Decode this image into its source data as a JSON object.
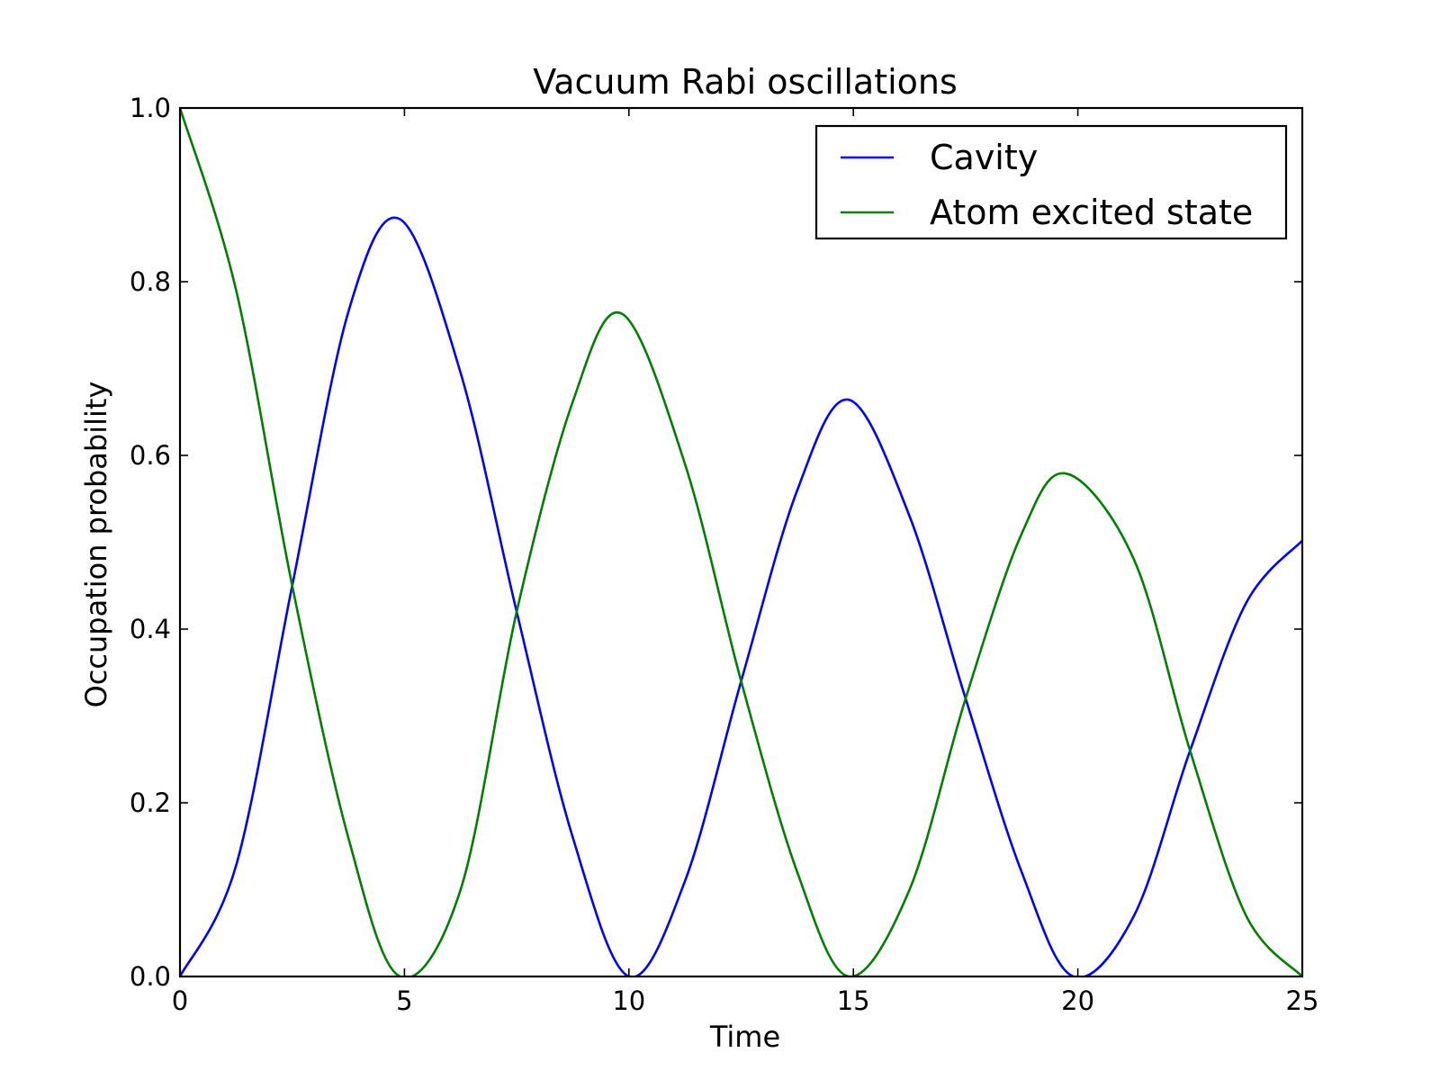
{
  "chart_data": {
    "type": "line",
    "title": "Vacuum Rabi oscillations",
    "xlabel": "Time",
    "ylabel": "Occupation probability",
    "xlim": [
      0,
      25
    ],
    "ylim": [
      0,
      1
    ],
    "xticks": [
      0,
      5,
      10,
      15,
      20,
      25
    ],
    "yticks": [
      0.0,
      0.2,
      0.4,
      0.6,
      0.8,
      1.0
    ],
    "xtick_labels": [
      "0",
      "5",
      "10",
      "15",
      "20",
      "25"
    ],
    "ytick_labels": [
      "0.0",
      "0.2",
      "0.4",
      "0.6",
      "0.8",
      "1.0"
    ],
    "grid": false,
    "legend_position": "top-right",
    "series": [
      {
        "name": "Cavity",
        "color": "#0000ff",
        "x": [
          0,
          1.25,
          2.5,
          3.75,
          4.9,
          6.25,
          7.5,
          8.75,
          10.0,
          11.25,
          12.5,
          13.75,
          14.9,
          16.25,
          17.5,
          18.75,
          19.9,
          21.25,
          22.5,
          23.75,
          25
        ],
        "y": [
          0.0,
          0.128,
          0.45,
          0.765,
          0.872,
          0.695,
          0.42,
          0.16,
          0.0,
          0.11,
          0.34,
          0.56,
          0.664,
          0.53,
          0.32,
          0.12,
          0.0,
          0.07,
          0.26,
          0.43,
          0.502
        ]
      },
      {
        "name": "Atom excited state",
        "color": "#008000",
        "x": [
          0,
          1.25,
          2.5,
          3.75,
          4.9,
          6.25,
          7.5,
          8.75,
          9.85,
          11.25,
          12.5,
          13.75,
          14.9,
          16.25,
          17.5,
          18.75,
          19.75,
          21.25,
          22.5,
          23.75,
          25
        ],
        "y": [
          1.0,
          0.79,
          0.45,
          0.16,
          0.0,
          0.1,
          0.42,
          0.662,
          0.763,
          0.59,
          0.34,
          0.12,
          0.0,
          0.1,
          0.32,
          0.51,
          0.579,
          0.48,
          0.26,
          0.07,
          0.0
        ]
      }
    ]
  }
}
